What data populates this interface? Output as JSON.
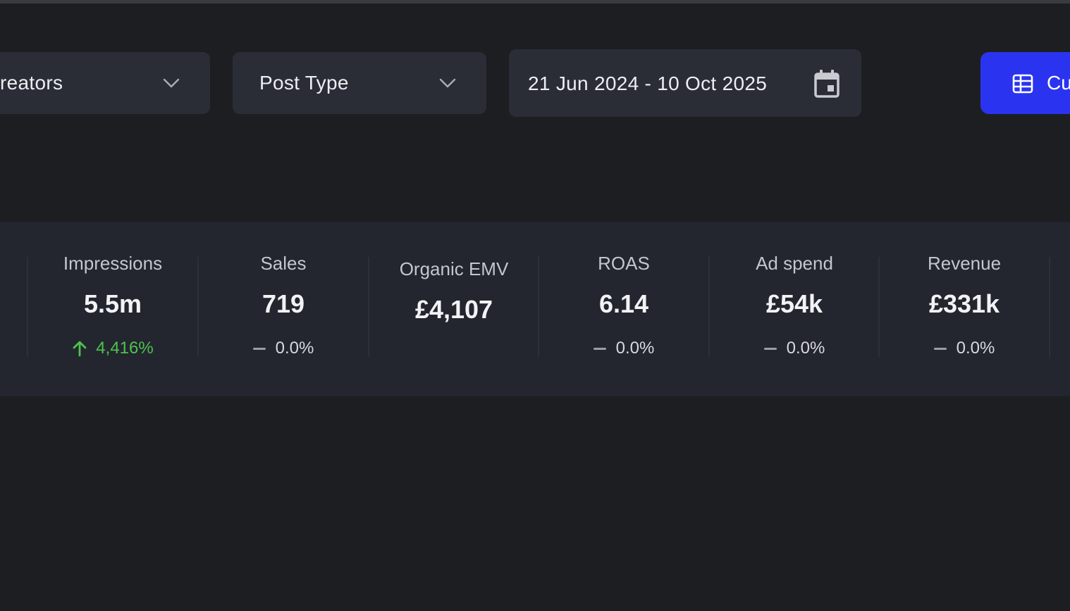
{
  "filters": {
    "creators_label": "reators",
    "post_type_label": "Post Type",
    "date_range": "21 Jun 2024 - 10 Oct 2025",
    "primary_button_label": "Cu"
  },
  "colors": {
    "background": "#1d1e22",
    "panel": "#23262f",
    "control": "#2b2d36",
    "primary": "#2a34f0",
    "positive": "#4fc24f"
  },
  "stats": [
    {
      "title": "Impressions",
      "value": "5.5m",
      "change": "4,416%",
      "trend": "up"
    },
    {
      "title": "Sales",
      "value": "719",
      "change": "0.0%",
      "trend": "flat"
    },
    {
      "title": "Organic EMV",
      "value": "£4,107",
      "change": "",
      "trend": "none"
    },
    {
      "title": "ROAS",
      "value": "6.14",
      "change": "0.0%",
      "trend": "flat"
    },
    {
      "title": "Ad spend",
      "value": "£54k",
      "change": "0.0%",
      "trend": "flat"
    },
    {
      "title": "Revenue",
      "value": "£331k",
      "change": "0.0%",
      "trend": "flat"
    }
  ]
}
